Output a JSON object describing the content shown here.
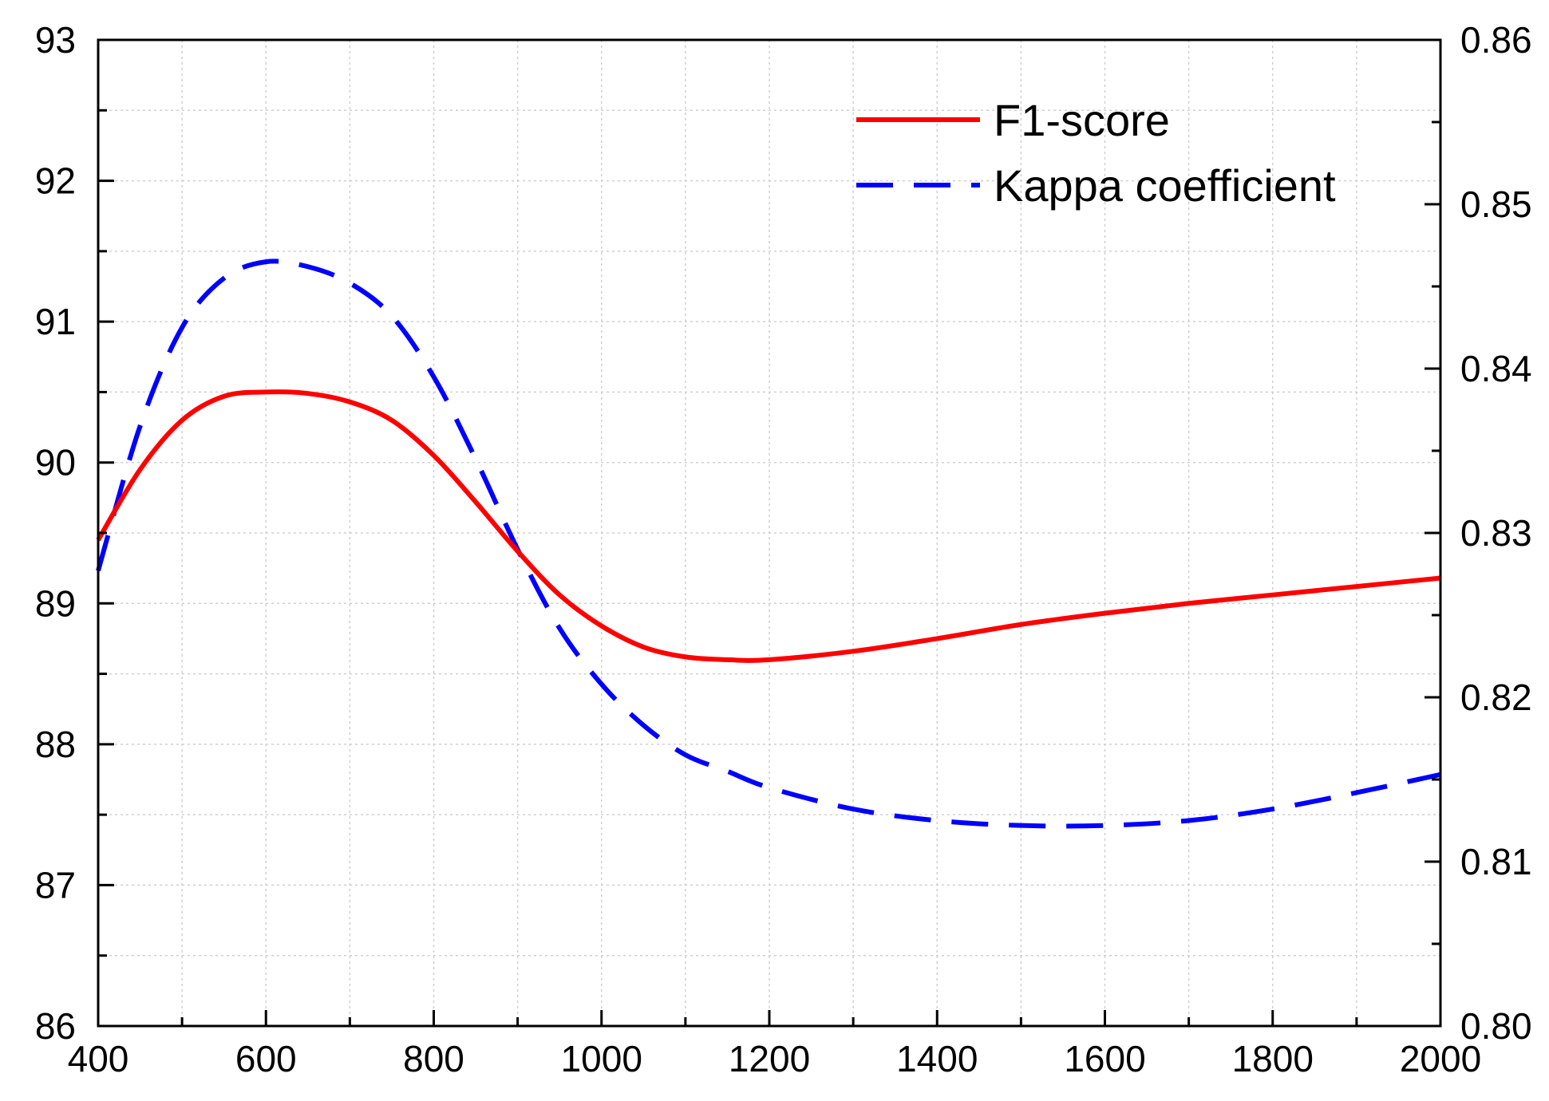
{
  "chart_data": {
    "type": "line",
    "title": "",
    "xlabel": "",
    "ylabel": "",
    "y2label": "",
    "xlim": [
      400,
      2000
    ],
    "ylim": [
      86,
      93
    ],
    "y2lim": [
      0.8,
      0.86
    ],
    "x_ticks": [
      400,
      600,
      800,
      1000,
      1200,
      1400,
      1600,
      1800,
      2000
    ],
    "x_tick_labels": [
      "400",
      "600",
      "800",
      "1000",
      "1200",
      "1400",
      "1600",
      "1800",
      "2000"
    ],
    "y_ticks": [
      86,
      87,
      88,
      89,
      90,
      91,
      92,
      93
    ],
    "y_tick_labels": [
      "86",
      "87",
      "88",
      "89",
      "90",
      "91",
      "92",
      "93"
    ],
    "y2_ticks": [
      0.8,
      0.81,
      0.82,
      0.83,
      0.84,
      0.85,
      0.86
    ],
    "y2_tick_labels": [
      "0.80",
      "0.81",
      "0.82",
      "0.83",
      "0.84",
      "0.85",
      "0.86"
    ],
    "grid": true,
    "legend_position": "top-right",
    "series": [
      {
        "name": "F1-score",
        "axis": "left",
        "color": "#ff0000",
        "style": "solid",
        "x": [
          400,
          450,
          500,
          550,
          600,
          650,
          700,
          750,
          800,
          850,
          900,
          950,
          1000,
          1050,
          1100,
          1150,
          1200,
          1300,
          1400,
          1500,
          1600,
          1700,
          1800,
          1900,
          2000
        ],
        "y": [
          89.45,
          89.95,
          90.3,
          90.47,
          90.5,
          90.49,
          90.43,
          90.3,
          90.05,
          89.72,
          89.37,
          89.06,
          88.84,
          88.69,
          88.62,
          88.6,
          88.6,
          88.66,
          88.75,
          88.85,
          88.93,
          89.0,
          89.06,
          89.12,
          89.18
        ]
      },
      {
        "name": "Kappa coefficient",
        "axis": "right",
        "color": "#0000ff",
        "style": "dashed",
        "x": [
          400,
          450,
          500,
          550,
          600,
          650,
          700,
          750,
          800,
          850,
          900,
          950,
          1000,
          1050,
          1100,
          1150,
          1200,
          1300,
          1400,
          1500,
          1600,
          1700,
          1800,
          1900,
          2000
        ],
        "y": [
          0.8277,
          0.8365,
          0.8425,
          0.8455,
          0.8465,
          0.8462,
          0.8452,
          0.8432,
          0.8395,
          0.8345,
          0.829,
          0.8242,
          0.8208,
          0.8183,
          0.8165,
          0.8155,
          0.8145,
          0.8132,
          0.8125,
          0.8122,
          0.8122,
          0.8125,
          0.8132,
          0.8142,
          0.8153
        ]
      }
    ]
  }
}
